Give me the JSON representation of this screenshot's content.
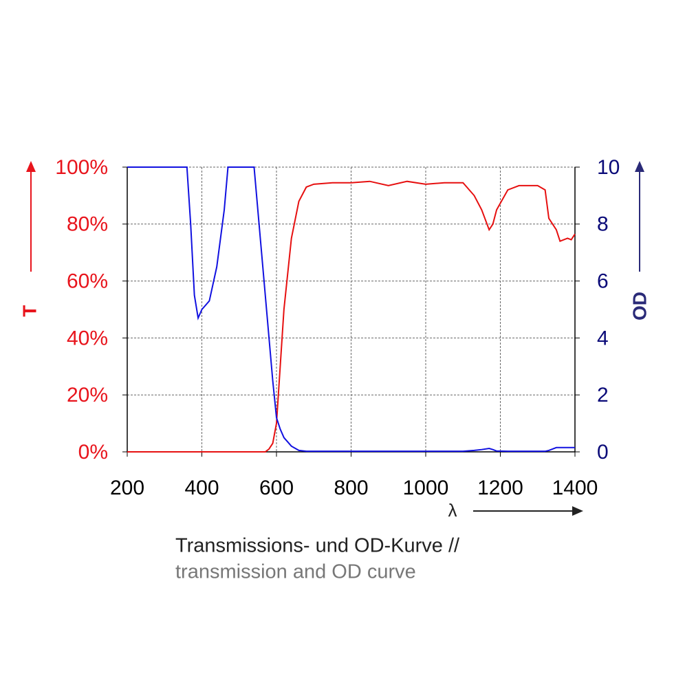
{
  "chart_data": {
    "type": "line",
    "title": "Transmissions- und OD-Kurve //",
    "subtitle": "transmission and OD curve",
    "x_label": "λ",
    "y_label": "T",
    "y2_label": "OD",
    "grid": true,
    "xlim": [
      200,
      1400
    ],
    "xticks": [
      200,
      400,
      600,
      800,
      1000,
      1200,
      1400
    ],
    "ylim": [
      0,
      100
    ],
    "yticks": [
      {
        "value": 0,
        "label": "0%"
      },
      {
        "value": 20,
        "label": "20%"
      },
      {
        "value": 40,
        "label": "40%"
      },
      {
        "value": 60,
        "label": "60%"
      },
      {
        "value": 80,
        "label": "80%"
      },
      {
        "value": 100,
        "label": "100%"
      }
    ],
    "y2lim": [
      0,
      10
    ],
    "y2ticks": [
      0,
      2,
      4,
      6,
      8,
      10
    ],
    "x": [
      200,
      300,
      360,
      370,
      380,
      390,
      400,
      420,
      440,
      460,
      470,
      540,
      560,
      570,
      580,
      590,
      600,
      610,
      620,
      640,
      660,
      680,
      700,
      750,
      800,
      850,
      900,
      950,
      1000,
      1050,
      1100,
      1130,
      1150,
      1170,
      1180,
      1190,
      1220,
      1250,
      1300,
      1320,
      1330,
      1350,
      1360,
      1380,
      1390,
      1400
    ],
    "series": [
      {
        "name": "T",
        "color": "#e60f0f",
        "axis": "y",
        "values": [
          0,
          0,
          0,
          0,
          0,
          0,
          0,
          0,
          0,
          0,
          0,
          0,
          0,
          0,
          1,
          3,
          10,
          30,
          50,
          75,
          88,
          93,
          94,
          94.5,
          94.5,
          95,
          93.5,
          95,
          94,
          94.5,
          94.5,
          90,
          85,
          78,
          80,
          85,
          92,
          93.5,
          93.5,
          92,
          82,
          78,
          74,
          75,
          74.5,
          76.5
        ]
      },
      {
        "name": "OD",
        "color": "#1010e0",
        "axis": "y2",
        "values": [
          10,
          10,
          10,
          8,
          5.5,
          4.7,
          5,
          5.3,
          6.5,
          8.5,
          10,
          10,
          7,
          5.5,
          4,
          2.5,
          1.2,
          0.8,
          0.5,
          0.2,
          0.05,
          0.02,
          0.02,
          0.02,
          0.02,
          0.02,
          0.02,
          0.02,
          0.02,
          0.02,
          0.02,
          0.05,
          0.08,
          0.12,
          0.08,
          0.03,
          0.02,
          0.02,
          0.02,
          0.02,
          0.05,
          0.15,
          0.15,
          0.15,
          0.15,
          0.15
        ]
      }
    ]
  }
}
